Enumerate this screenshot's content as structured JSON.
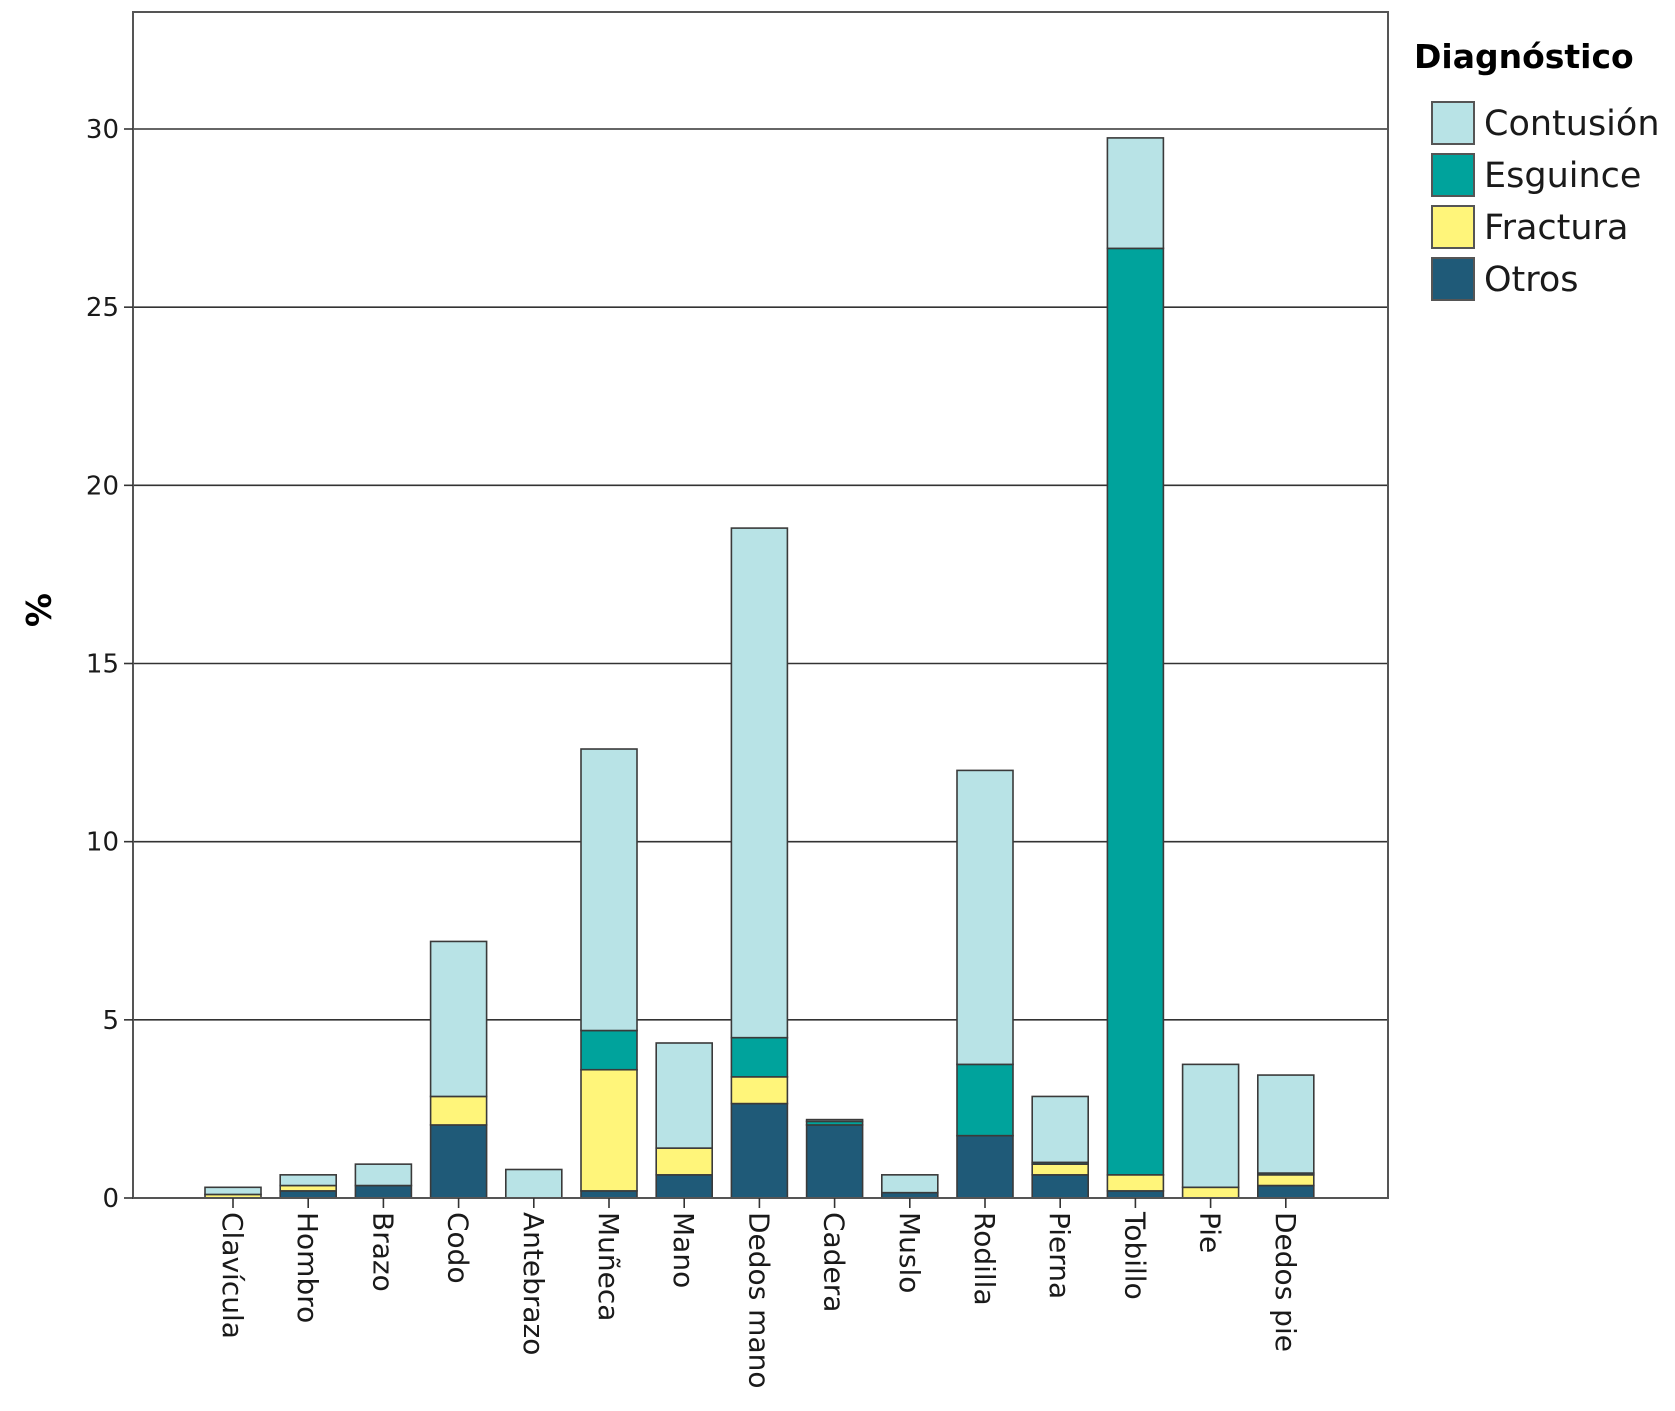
{
  "chart_data": {
    "type": "bar",
    "stacked": true,
    "title": "",
    "xlabel": "",
    "ylabel": "%",
    "ylim": [
      0,
      33
    ],
    "yticks": [
      0,
      5,
      10,
      15,
      20,
      25,
      30
    ],
    "grid": true,
    "legend_title": "Diagnóstico",
    "legend_position": "top-right",
    "categories": [
      "Clavícula",
      "Hombro",
      "Brazo",
      "Codo",
      "Antebrazo",
      "Muñeca",
      "Mano",
      "Dedos mano",
      "Cadera",
      "Muslo",
      "Rodilla",
      "Pierna",
      "Tobillo",
      "Pie",
      "Dedos pie"
    ],
    "series": [
      {
        "name": "Otros",
        "color": "#1f5a78",
        "values": [
          0.0,
          0.2,
          0.35,
          2.05,
          0.0,
          0.2,
          0.65,
          2.65,
          2.05,
          0.15,
          1.75,
          0.65,
          0.2,
          0.0,
          0.35
        ]
      },
      {
        "name": "Fractura",
        "color": "#fff57a",
        "values": [
          0.1,
          0.15,
          0.0,
          0.8,
          0.0,
          3.4,
          0.75,
          0.75,
          0.0,
          0.0,
          0.0,
          0.3,
          0.45,
          0.3,
          0.3
        ]
      },
      {
        "name": "Esguince",
        "color": "#00a39c",
        "values": [
          0.0,
          0.0,
          0.0,
          0.0,
          0.0,
          1.1,
          0.0,
          1.1,
          0.1,
          0.0,
          2.0,
          0.05,
          26.0,
          0.0,
          0.05
        ]
      },
      {
        "name": "Contusión",
        "color": "#b8e3e6",
        "values": [
          0.2,
          0.3,
          0.6,
          4.35,
          0.8,
          7.9,
          2.95,
          14.3,
          0.05,
          0.5,
          8.25,
          1.85,
          3.1,
          3.45,
          2.75
        ]
      }
    ],
    "legend_order": [
      "Contusión",
      "Esguince",
      "Fractura",
      "Otros"
    ]
  }
}
